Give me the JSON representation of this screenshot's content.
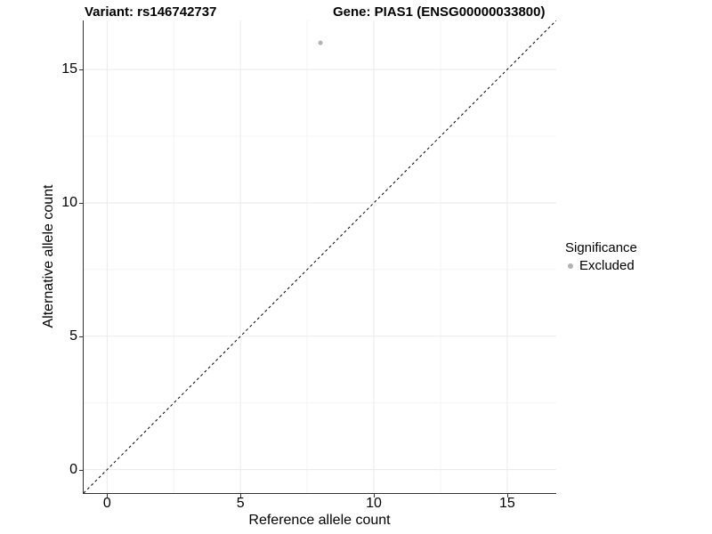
{
  "figure": {
    "background": "#ffffff"
  },
  "chart_data": {
    "type": "scatter",
    "titles": {
      "variant": "Variant: rs146742737",
      "gene": "Gene: PIAS1 (ENSG00000033800)"
    },
    "xlabel": "Reference allele count",
    "ylabel": "Alternative allele count",
    "xlim": [
      -0.88,
      16.84
    ],
    "ylim": [
      -0.88,
      16.84
    ],
    "x_ticks": [
      0,
      5,
      10,
      15
    ],
    "y_ticks": [
      0,
      5,
      10,
      15
    ],
    "minor_gridlines": [
      2.5,
      7.5,
      12.5
    ],
    "grid": "major+minor on, white panel background",
    "points": [
      {
        "x": 8,
        "y": 16,
        "group": "Excluded"
      }
    ],
    "reference_line": {
      "type": "identity",
      "slope": 1,
      "intercept": 0,
      "style": "dashed",
      "color": "#000000"
    },
    "legend": {
      "title": "Significance",
      "position": "right",
      "items": [
        {
          "label": "Excluded",
          "color": "#b3b3b3"
        }
      ]
    },
    "colors": {
      "point": "#b3b3b3",
      "grid_major": "#eaeaea",
      "grid_minor": "#f4f4f4",
      "axis_line": "#333333",
      "text": "#000000"
    }
  }
}
